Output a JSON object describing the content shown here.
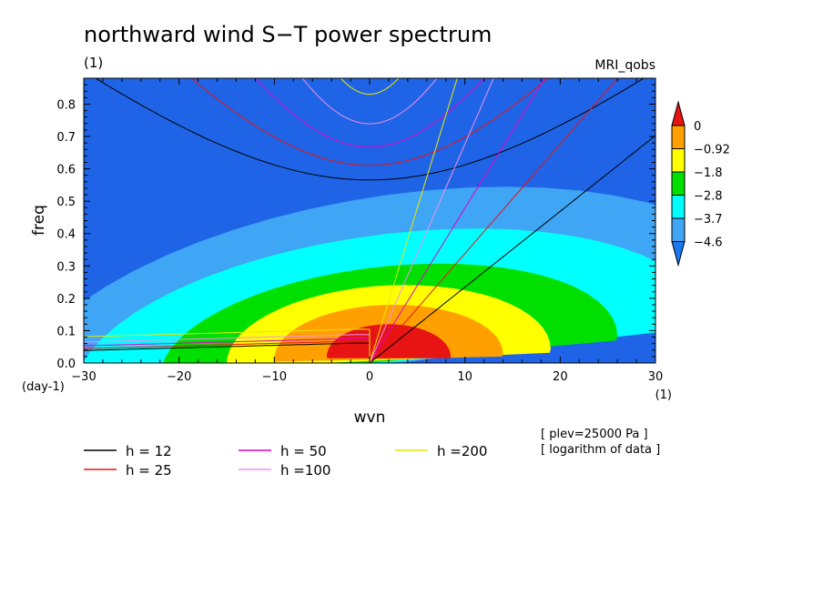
{
  "chart_data": {
    "type": "heatmap",
    "title": "northward wind S−T power spectrum",
    "subtitle": "(1)",
    "model_label": "MRI_qobs",
    "xlabel": "wvn",
    "ylabel": "freq",
    "x_unit": "(1)",
    "y_unit": "(day-1)",
    "xlim": [
      -30,
      30
    ],
    "ylim": [
      0,
      0.88
    ],
    "x_ticks": [
      -30,
      -20,
      -10,
      0,
      10,
      20,
      30
    ],
    "x_tick_labels": [
      "−30",
      "−20",
      "−10",
      "0",
      "10",
      "20",
      "30"
    ],
    "y_ticks": [
      0,
      0.1,
      0.2,
      0.3,
      0.4,
      0.5,
      0.6,
      0.7,
      0.8
    ],
    "y_tick_labels": [
      "0.0",
      "0.1",
      "0.2",
      "0.3",
      "0.4",
      "0.5",
      "0.6",
      "0.7",
      "0.8"
    ],
    "colorbar": {
      "levels": [
        -4.6,
        -3.7,
        -2.8,
        -1.8,
        -0.92,
        0
      ],
      "labels": [
        "−4.6",
        "−3.7",
        "−2.8",
        "−1.8",
        "−0.92",
        "0"
      ],
      "colors": [
        "#1a78f0",
        "#3fa5f5",
        "#00ffff",
        "#00e000",
        "#ffff00",
        "#ffa000",
        "#e81414"
      ],
      "extend": "both"
    },
    "contour_fill": {
      "center": [
        2,
        0.02
      ],
      "levels_shown": 6,
      "base_color": "#1f64e6"
    },
    "dispersion_curves": [
      {
        "name": "h = 12",
        "h": 12,
        "color": "#000000"
      },
      {
        "name": "h = 25",
        "h": 25,
        "color": "#e81414"
      },
      {
        "name": "h = 50",
        "h": 50,
        "color": "#e000c8"
      },
      {
        "name": "h =100",
        "h": 100,
        "color": "#ee90ee"
      },
      {
        "name": "h =200",
        "h": 200,
        "color": "#e8e800"
      }
    ],
    "annotations": [
      "[ plev=25000 Pa ]",
      "[ logarithm of data ]"
    ]
  }
}
